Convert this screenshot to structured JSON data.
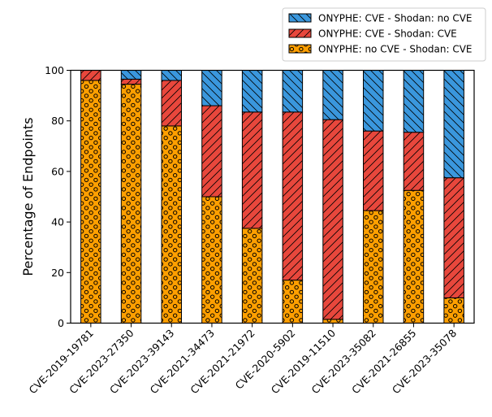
{
  "chart_data": {
    "type": "bar",
    "stacked": true,
    "title": "",
    "xlabel": "",
    "ylabel": "Percentage of Endpoints",
    "ylim": [
      0,
      100
    ],
    "yticks": [
      0,
      20,
      40,
      60,
      80,
      100
    ],
    "grid": false,
    "legend_position": "top-right",
    "categories": [
      "CVE-2019-19781",
      "CVE-2023-27350",
      "CVE-2023-39143",
      "CVE-2021-34473",
      "CVE-2021-21972",
      "CVE-2020-5902",
      "CVE-2019-11510",
      "CVE-2023-35082",
      "CVE-2021-26855",
      "CVE-2023-35078"
    ],
    "series": [
      {
        "name": "ONYPHE: no CVE - Shodan: CVE",
        "color": "#ff9f00",
        "hatch": "dots",
        "values": [
          96,
          94.5,
          78,
          50,
          37.5,
          17,
          1.5,
          44.5,
          52.5,
          10
        ]
      },
      {
        "name": "ONYPHE: CVE - Shodan: CVE",
        "color": "#e8473c",
        "hatch": "forward-diagonal",
        "values": [
          4,
          2,
          18,
          36,
          46,
          66.5,
          79,
          31.5,
          23,
          47.5
        ]
      },
      {
        "name": "ONYPHE: CVE - Shodan: no CVE",
        "color": "#3a97dd",
        "hatch": "back-diagonal",
        "values": [
          0,
          3.5,
          4,
          14,
          16.5,
          16.5,
          19.5,
          24,
          24.5,
          42.5
        ]
      }
    ]
  }
}
